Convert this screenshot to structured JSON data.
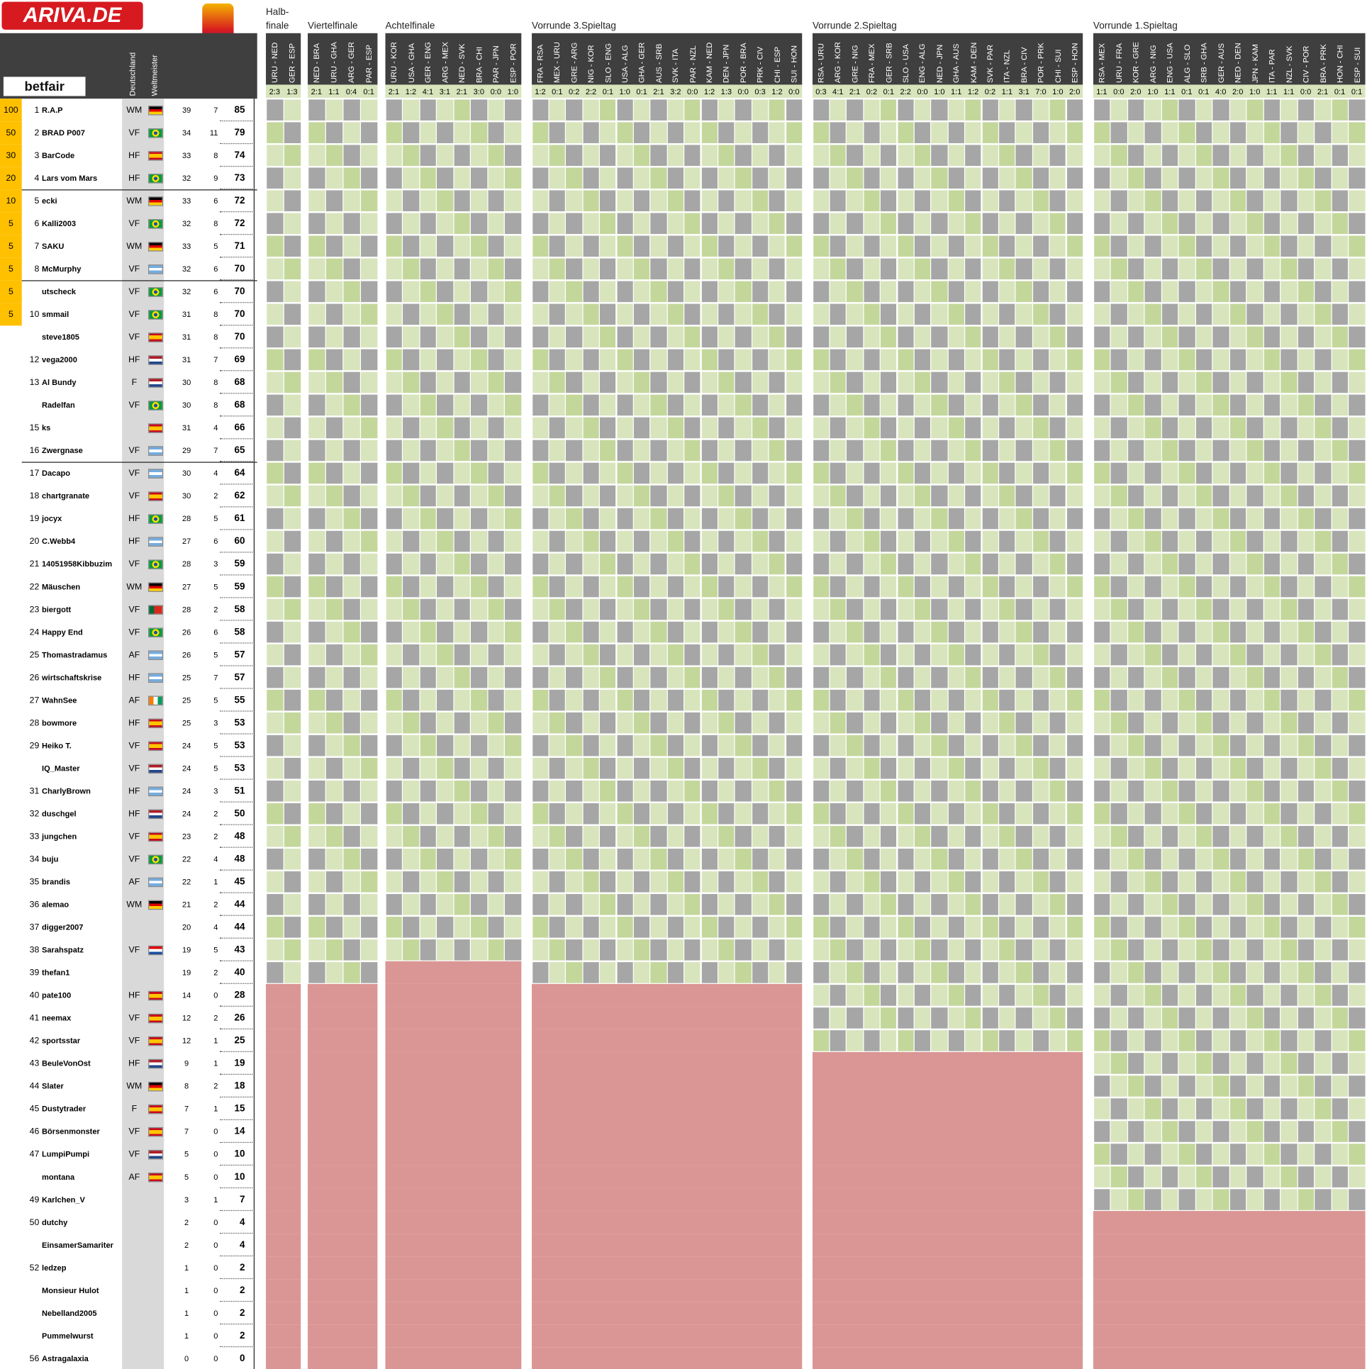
{
  "logo": "ARIVA.DE",
  "sponsor": "betfair",
  "column_headers": [
    "Deutschland",
    "Weltmeister"
  ],
  "bonus": [
    100,
    50,
    30,
    20,
    10,
    5,
    5,
    5,
    5,
    5
  ],
  "stages": [
    {
      "title": "Halb-\nfinale",
      "matches": [
        {
          "name": "URU - NED",
          "result": "2:3"
        },
        {
          "name": "GER - ESP",
          "result": "1:3"
        }
      ]
    },
    {
      "title": "Viertelfinale",
      "matches": [
        {
          "name": "NED - BRA",
          "result": "2:1"
        },
        {
          "name": "URU - GHA",
          "result": "1:1"
        },
        {
          "name": "ARG - GER",
          "result": "0:4"
        },
        {
          "name": "PAR - ESP",
          "result": "0:1"
        }
      ]
    },
    {
      "title": "Achtelfinale",
      "matches": [
        {
          "name": "URU - KOR",
          "result": "2:1"
        },
        {
          "name": "USA - GHA",
          "result": "1:2"
        },
        {
          "name": "GER - ENG",
          "result": "4:1"
        },
        {
          "name": "ARG - MEX",
          "result": "3:1"
        },
        {
          "name": "NED - SVK",
          "result": "2:1"
        },
        {
          "name": "BRA - CHI",
          "result": "3:0"
        },
        {
          "name": "PAR - JPN",
          "result": "0:0"
        },
        {
          "name": "ESP - POR",
          "result": "1:0"
        }
      ]
    },
    {
      "title": "Vorrunde 3.Spieltag",
      "matches": [
        {
          "name": "FRA - RSA",
          "result": "1:2"
        },
        {
          "name": "MEX - URU",
          "result": "0:1"
        },
        {
          "name": "GRE - ARG",
          "result": "0:2"
        },
        {
          "name": "NIG - KOR",
          "result": "2:2"
        },
        {
          "name": "SLO - ENG",
          "result": "0:1"
        },
        {
          "name": "USA - ALG",
          "result": "1:0"
        },
        {
          "name": "GHA - GER",
          "result": "0:1"
        },
        {
          "name": "AUS - SRB",
          "result": "2:1"
        },
        {
          "name": "SVK - ITA",
          "result": "3:2"
        },
        {
          "name": "PAR - NZL",
          "result": "0:0"
        },
        {
          "name": "KAM - NED",
          "result": "1:2"
        },
        {
          "name": "DEN - JPN",
          "result": "1:3"
        },
        {
          "name": "POR - BRA",
          "result": "0:0"
        },
        {
          "name": "PRK - CIV",
          "result": "0:3"
        },
        {
          "name": "CHI - ESP",
          "result": "1:2"
        },
        {
          "name": "SUI - HON",
          "result": "0:0"
        }
      ]
    },
    {
      "title": "Vorrunde 2.Spieltag",
      "matches": [
        {
          "name": "RSA - URU",
          "result": "0:3"
        },
        {
          "name": "ARG - KOR",
          "result": "4:1"
        },
        {
          "name": "GRE - NIG",
          "result": "2:1"
        },
        {
          "name": "FRA - MEX",
          "result": "0:2"
        },
        {
          "name": "GER - SRB",
          "result": "0:1"
        },
        {
          "name": "SLO - USA",
          "result": "2:2"
        },
        {
          "name": "ENG - ALG",
          "result": "0:0"
        },
        {
          "name": "NED - JPN",
          "result": "1:0"
        },
        {
          "name": "GHA - AUS",
          "result": "1:1"
        },
        {
          "name": "KAM - DEN",
          "result": "1:2"
        },
        {
          "name": "SVK - PAR",
          "result": "0:2"
        },
        {
          "name": "ITA - NZL",
          "result": "1:1"
        },
        {
          "name": "BRA - CIV",
          "result": "3:1"
        },
        {
          "name": "POR - PRK",
          "result": "7:0"
        },
        {
          "name": "CHI - SUI",
          "result": "1:0"
        },
        {
          "name": "ESP - HON",
          "result": "2:0"
        }
      ]
    },
    {
      "title": "Vorrunde 1.Spieltag",
      "matches": [
        {
          "name": "RSA - MEX",
          "result": "1:1"
        },
        {
          "name": "URU - FRA",
          "result": "0:0"
        },
        {
          "name": "KOR - GRE",
          "result": "2:0"
        },
        {
          "name": "ARG - NIG",
          "result": "1:0"
        },
        {
          "name": "ENG - USA",
          "result": "1:1"
        },
        {
          "name": "ALG - SLO",
          "result": "0:1"
        },
        {
          "name": "SRB - GHA",
          "result": "0:1"
        },
        {
          "name": "GER - AUS",
          "result": "4:0"
        },
        {
          "name": "NED - DEN",
          "result": "2:0"
        },
        {
          "name": "JPN - KAM",
          "result": "1:0"
        },
        {
          "name": "ITA - PAR",
          "result": "1:1"
        },
        {
          "name": "NZL - SVK",
          "result": "1:1"
        },
        {
          "name": "CIV - POR",
          "result": "0:0"
        },
        {
          "name": "BRA - PRK",
          "result": "2:1"
        },
        {
          "name": "HON - CHI",
          "result": "0:1"
        },
        {
          "name": "ESP - SUI",
          "result": "0:1"
        }
      ]
    }
  ],
  "players": [
    {
      "rank": "1",
      "name": "R.A.P",
      "pick": "WM",
      "flag": "de",
      "germany": "39",
      "champion": "7",
      "total": "85"
    },
    {
      "rank": "2",
      "name": "BRAD P007",
      "pick": "VF",
      "flag": "br",
      "germany": "34",
      "champion": "11",
      "total": "79"
    },
    {
      "rank": "3",
      "name": "BarCode",
      "pick": "HF",
      "flag": "es",
      "germany": "33",
      "champion": "8",
      "total": "74"
    },
    {
      "rank": "4",
      "name": "Lars vom Mars",
      "pick": "HF",
      "flag": "br",
      "germany": "32",
      "champion": "9",
      "total": "73"
    },
    {
      "rank": "5",
      "name": "ecki",
      "pick": "WM",
      "flag": "de",
      "germany": "33",
      "champion": "6",
      "total": "72"
    },
    {
      "rank": "6",
      "name": "Kalli2003",
      "pick": "VF",
      "flag": "br",
      "germany": "32",
      "champion": "8",
      "total": "72"
    },
    {
      "rank": "7",
      "name": "SAKU",
      "pick": "WM",
      "flag": "de",
      "germany": "33",
      "champion": "5",
      "total": "71"
    },
    {
      "rank": "8",
      "name": "McMurphy",
      "pick": "VF",
      "flag": "ar",
      "germany": "32",
      "champion": "6",
      "total": "70"
    },
    {
      "rank": null,
      "name": "utscheck",
      "pick": "VF",
      "flag": "br",
      "germany": "32",
      "champion": "6",
      "total": "70"
    },
    {
      "rank": "10",
      "name": "smmail",
      "pick": "VF",
      "flag": "br",
      "germany": "31",
      "champion": "8",
      "total": "70"
    },
    {
      "rank": null,
      "name": "steve1805",
      "pick": "VF",
      "flag": "es",
      "germany": "31",
      "champion": "8",
      "total": "70"
    },
    {
      "rank": "12",
      "name": "vega2000",
      "pick": "HF",
      "flag": "nl",
      "germany": "31",
      "champion": "7",
      "total": "69"
    },
    {
      "rank": "13",
      "name": "Al Bundy",
      "pick": "F",
      "flag": "nl",
      "germany": "30",
      "champion": "8",
      "total": "68"
    },
    {
      "rank": null,
      "name": "Radelfan",
      "pick": "VF",
      "flag": "br",
      "germany": "30",
      "champion": "8",
      "total": "68"
    },
    {
      "rank": "15",
      "name": "ks",
      "pick": null,
      "flag": "es",
      "germany": "31",
      "champion": "4",
      "total": "66"
    },
    {
      "rank": "16",
      "name": "Zwergnase",
      "pick": "VF",
      "flag": "ar",
      "germany": "29",
      "champion": "7",
      "total": "65"
    },
    {
      "rank": "17",
      "name": "Dacapo",
      "pick": "VF",
      "flag": "ar",
      "germany": "30",
      "champion": "4",
      "total": "64"
    },
    {
      "rank": "18",
      "name": "chartgranate",
      "pick": "VF",
      "flag": "es",
      "germany": "30",
      "champion": "2",
      "total": "62"
    },
    {
      "rank": "19",
      "name": "jocyx",
      "pick": "HF",
      "flag": "br",
      "germany": "28",
      "champion": "5",
      "total": "61"
    },
    {
      "rank": "20",
      "name": "C.Webb4",
      "pick": "HF",
      "flag": "ar",
      "germany": "27",
      "champion": "6",
      "total": "60"
    },
    {
      "rank": "21",
      "name": "14051958Kibbuzim",
      "pick": "VF",
      "flag": "br",
      "germany": "28",
      "champion": "3",
      "total": "59"
    },
    {
      "rank": "22",
      "name": "Mäuschen",
      "pick": "WM",
      "flag": "de",
      "germany": "27",
      "champion": "5",
      "total": "59"
    },
    {
      "rank": "23",
      "name": "biergott",
      "pick": "VF",
      "flag": "pt",
      "germany": "28",
      "champion": "2",
      "total": "58"
    },
    {
      "rank": "24",
      "name": "Happy End",
      "pick": "VF",
      "flag": "br",
      "germany": "26",
      "champion": "6",
      "total": "58"
    },
    {
      "rank": "25",
      "name": "Thomastradamus",
      "pick": "AF",
      "flag": "ar",
      "germany": "26",
      "champion": "5",
      "total": "57"
    },
    {
      "rank": "26",
      "name": "wirtschaftskrise",
      "pick": "HF",
      "flag": "ar",
      "germany": "25",
      "champion": "7",
      "total": "57"
    },
    {
      "rank": "27",
      "name": "WahnSee",
      "pick": "AF",
      "flag": "ci",
      "germany": "25",
      "champion": "5",
      "total": "55"
    },
    {
      "rank": "28",
      "name": "bowmore",
      "pick": "HF",
      "flag": "es",
      "germany": "25",
      "champion": "3",
      "total": "53"
    },
    {
      "rank": "29",
      "name": "Heiko T.",
      "pick": "VF",
      "flag": "es",
      "germany": "24",
      "champion": "5",
      "total": "53"
    },
    {
      "rank": null,
      "name": "IQ_Master",
      "pick": "VF",
      "flag": "nl",
      "germany": "24",
      "champion": "5",
      "total": "53"
    },
    {
      "rank": "31",
      "name": "CharlyBrown",
      "pick": "HF",
      "flag": "ar",
      "germany": "24",
      "champion": "3",
      "total": "51"
    },
    {
      "rank": "32",
      "name": "duschgel",
      "pick": "HF",
      "flag": "nl",
      "germany": "24",
      "champion": "2",
      "total": "50"
    },
    {
      "rank": "33",
      "name": "jungchen",
      "pick": "VF",
      "flag": "es",
      "germany": "23",
      "champion": "2",
      "total": "48"
    },
    {
      "rank": "34",
      "name": "buju",
      "pick": "VF",
      "flag": "br",
      "germany": "22",
      "champion": "4",
      "total": "48"
    },
    {
      "rank": "35",
      "name": "brandis",
      "pick": "AF",
      "flag": "ar",
      "germany": "22",
      "champion": "1",
      "total": "45"
    },
    {
      "rank": "36",
      "name": "alemao",
      "pick": "WM",
      "flag": "de",
      "germany": "21",
      "champion": "2",
      "total": "44"
    },
    {
      "rank": "37",
      "name": "digger2007",
      "pick": null,
      "flag": null,
      "germany": "20",
      "champion": "4",
      "total": "44"
    },
    {
      "rank": "38",
      "name": "Sarahspatz",
      "pick": "VF",
      "flag": "hr",
      "germany": "19",
      "champion": "5",
      "total": "43"
    },
    {
      "rank": "39",
      "name": "thefan1",
      "pick": null,
      "flag": null,
      "germany": "19",
      "champion": "2",
      "total": "40"
    },
    {
      "rank": "40",
      "name": "pate100",
      "pick": "HF",
      "flag": "es",
      "germany": "14",
      "champion": "0",
      "total": "28"
    },
    {
      "rank": "41",
      "name": "neemax",
      "pick": "VF",
      "flag": "es",
      "germany": "12",
      "champion": "2",
      "total": "26"
    },
    {
      "rank": "42",
      "name": "sportsstar",
      "pick": "VF",
      "flag": "es",
      "germany": "12",
      "champion": "1",
      "total": "25"
    },
    {
      "rank": "43",
      "name": "BeuleVonOst",
      "pick": "HF",
      "flag": "nl",
      "germany": "9",
      "champion": "1",
      "total": "19"
    },
    {
      "rank": "44",
      "name": "Slater",
      "pick": "WM",
      "flag": "de",
      "germany": "8",
      "champion": "2",
      "total": "18"
    },
    {
      "rank": "45",
      "name": "Dustytrader",
      "pick": "F",
      "flag": "es",
      "germany": "7",
      "champion": "1",
      "total": "15"
    },
    {
      "rank": "46",
      "name": "Börsenmonster",
      "pick": "VF",
      "flag": "es",
      "germany": "7",
      "champion": "0",
      "total": "14"
    },
    {
      "rank": "47",
      "name": "LumpiPumpi",
      "pick": "VF",
      "flag": "nl",
      "germany": "5",
      "champion": "0",
      "total": "10"
    },
    {
      "rank": null,
      "name": "montana",
      "pick": "AF",
      "flag": "es",
      "germany": "5",
      "champion": "0",
      "total": "10"
    },
    {
      "rank": "49",
      "name": "Karlchen_V",
      "pick": null,
      "flag": null,
      "germany": "3",
      "champion": "1",
      "total": "7"
    },
    {
      "rank": "50",
      "name": "dutchy",
      "pick": null,
      "flag": null,
      "germany": "2",
      "champion": "0",
      "total": "4"
    },
    {
      "rank": null,
      "name": "EinsamerSamariter",
      "pick": null,
      "flag": null,
      "germany": "2",
      "champion": "0",
      "total": "4"
    },
    {
      "rank": "52",
      "name": "ledzep",
      "pick": null,
      "flag": null,
      "germany": "1",
      "champion": "0",
      "total": "2"
    },
    {
      "rank": null,
      "name": "Monsieur Hulot",
      "pick": null,
      "flag": null,
      "germany": "1",
      "champion": "0",
      "total": "2"
    },
    {
      "rank": null,
      "name": "Nebelland2005",
      "pick": null,
      "flag": null,
      "germany": "1",
      "champion": "0",
      "total": "2"
    },
    {
      "rank": null,
      "name": "Pummelwurst",
      "pick": null,
      "flag": null,
      "germany": "1",
      "champion": "0",
      "total": "2"
    },
    {
      "rank": "56",
      "name": "Astragalaxia",
      "pick": null,
      "flag": null,
      "germany": "0",
      "champion": "0",
      "total": "0"
    }
  ]
}
